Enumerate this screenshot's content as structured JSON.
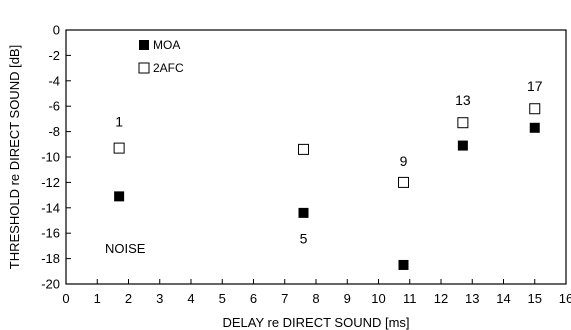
{
  "chart_data": {
    "type": "scatter",
    "title": "",
    "xlabel": "DELAY re DIRECT SOUND [ms]",
    "ylabel": "THRESHOLD re DIRECT SOUND [dB]",
    "xlim": [
      0,
      16
    ],
    "ylim": [
      -20,
      0
    ],
    "xticks": [
      "0",
      "1",
      "2",
      "3",
      "4",
      "5",
      "6",
      "7",
      "8",
      "9",
      "10",
      "11",
      "12",
      "13",
      "14",
      "15",
      "16"
    ],
    "yticks": [
      "0",
      "-2",
      "-4",
      "-6",
      "-8",
      "-10",
      "-12",
      "-14",
      "-16",
      "-18",
      "-20"
    ],
    "grid": false,
    "legend_position": "top-left",
    "series": [
      {
        "name": "MOA",
        "marker": "filled-square",
        "color": "#000000",
        "points": [
          {
            "x": 1.7,
            "y": -13.1
          },
          {
            "x": 7.6,
            "y": -14.4
          },
          {
            "x": 10.8,
            "y": -18.5
          },
          {
            "x": 12.7,
            "y": -9.1
          },
          {
            "x": 15.0,
            "y": -7.7
          }
        ]
      },
      {
        "name": "2AFC",
        "marker": "open-square",
        "color": "#000000",
        "points": [
          {
            "x": 1.7,
            "y": -9.3
          },
          {
            "x": 7.6,
            "y": -9.4
          },
          {
            "x": 10.8,
            "y": -12.0
          },
          {
            "x": 12.7,
            "y": -7.3
          },
          {
            "x": 15.0,
            "y": -6.2
          }
        ]
      }
    ],
    "annotations": [
      {
        "text": "1",
        "x": 1.7,
        "y": -7.2
      },
      {
        "text": "5",
        "x": 7.6,
        "y": -16.4
      },
      {
        "text": "9",
        "x": 10.8,
        "y": -10.3
      },
      {
        "text": "13",
        "x": 12.7,
        "y": -5.5
      },
      {
        "text": "17",
        "x": 15.0,
        "y": -4.4
      }
    ],
    "note": "NOISE"
  }
}
